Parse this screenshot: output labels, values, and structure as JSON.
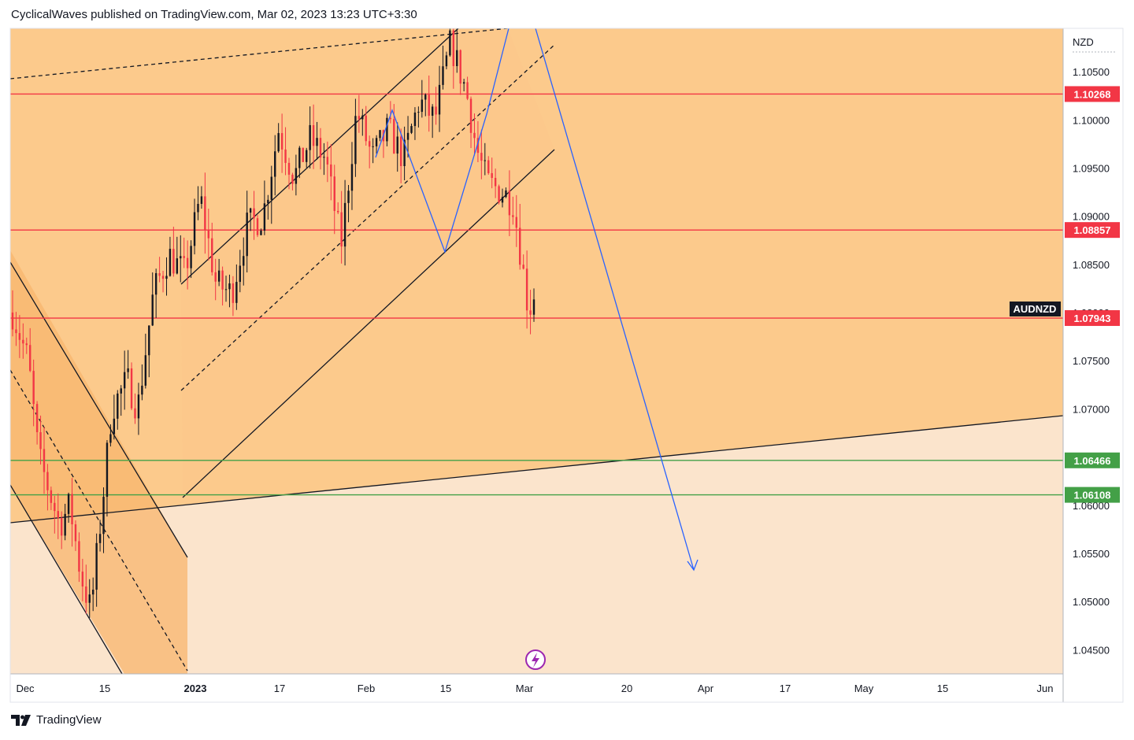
{
  "header": {
    "text": "CyclicalWaves published on TradingView.com, Mar 02, 2023 13:23 UTC+3:30"
  },
  "footer": {
    "brand": "TradingView"
  },
  "chart_data": {
    "type": "candlestick",
    "symbol": "AUDNZD",
    "currency": "NZD",
    "y_range": [
      1.0425,
      1.1095
    ],
    "y_ticks": [
      "1.04500",
      "1.05000",
      "1.05500",
      "1.06000",
      "1.06500",
      "1.07000",
      "1.07500",
      "1.08000",
      "1.08500",
      "1.09000",
      "1.09500",
      "1.10000",
      "1.10500"
    ],
    "x_ticks": [
      "Dec",
      "15",
      "2023",
      "17",
      "Feb",
      "15",
      "Mar",
      "20",
      "Apr",
      "17",
      "May",
      "15",
      "Jun"
    ],
    "levels": [
      {
        "label": "1.10268",
        "value": 1.10268,
        "color": "#f23645"
      },
      {
        "label": "1.08857",
        "value": 1.08857,
        "color": "#f23645"
      },
      {
        "label": "1.07943",
        "value": 1.07943,
        "color": "#f23645"
      },
      {
        "label": "1.06466",
        "value": 1.06466,
        "color": "#43a047"
      },
      {
        "label": "1.06108",
        "value": 1.06108,
        "color": "#43a047"
      }
    ],
    "candles_summary": {
      "start_price": 1.0795,
      "path": [
        [
          0,
          1.08
        ],
        [
          0.03,
          1.075
        ],
        [
          0.05,
          1.065
        ],
        [
          0.09,
          1.058
        ],
        [
          0.11,
          1.06
        ],
        [
          0.13,
          1.053
        ],
        [
          0.15,
          1.049
        ],
        [
          0.17,
          1.059
        ],
        [
          0.19,
          1.07
        ],
        [
          0.22,
          1.073
        ],
        [
          0.24,
          1.07
        ],
        [
          0.27,
          1.082
        ],
        [
          0.3,
          1.086
        ],
        [
          0.33,
          1.084
        ],
        [
          0.36,
          1.092
        ],
        [
          0.39,
          1.083
        ],
        [
          0.42,
          1.082
        ],
        [
          0.45,
          1.089
        ],
        [
          0.48,
          1.09
        ],
        [
          0.51,
          1.099
        ],
        [
          0.54,
          1.094
        ],
        [
          0.57,
          1.098
        ],
        [
          0.6,
          1.096
        ],
        [
          0.63,
          1.087
        ],
        [
          0.66,
          1.101
        ],
        [
          0.69,
          1.096
        ],
        [
          0.72,
          1.099
        ],
        [
          0.75,
          1.096
        ],
        [
          0.78,
          1.102
        ],
        [
          0.81,
          1.1
        ],
        [
          0.84,
          1.108
        ],
        [
          0.87,
          1.103
        ],
        [
          0.89,
          1.097
        ],
        [
          0.91,
          1.0935
        ],
        [
          0.94,
          1.0925
        ],
        [
          0.96,
          1.0915
        ],
        [
          0.975,
          1.086
        ],
        [
          0.99,
          1.08
        ],
        [
          1.0,
          1.082
        ]
      ]
    }
  }
}
